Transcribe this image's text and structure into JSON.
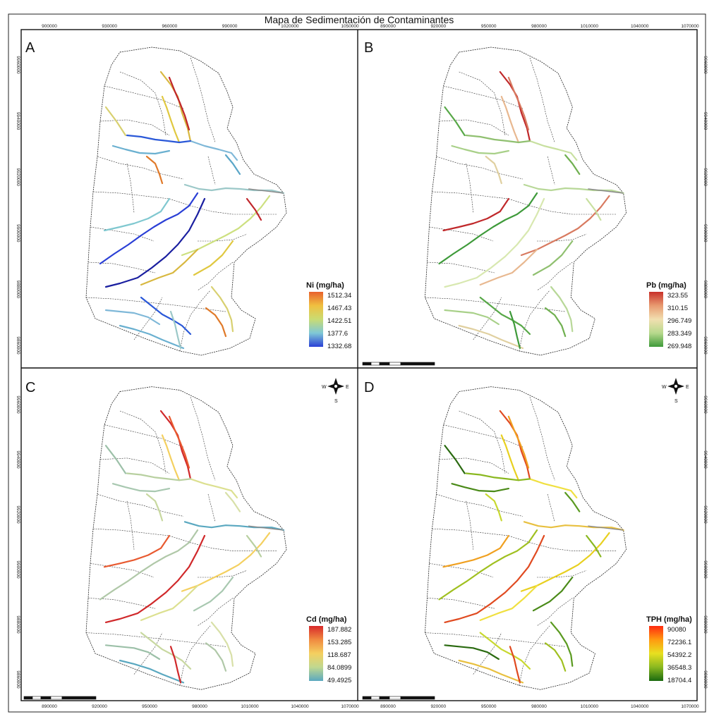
{
  "title": "Mapa de Sedimentación de Contaminantes",
  "panels": [
    {
      "letter": "A",
      "legend_title": "Ni (mg/ha)",
      "legend_values": [
        "1512.34",
        "1467.43",
        "1422.51",
        "1377.6",
        "1332.68"
      ],
      "ramp": [
        "#e8612c",
        "#f0c040",
        "#c9dc73",
        "#7fc8d6",
        "#2a3fd6"
      ],
      "x_ticks_top": [
        "900000",
        "930000",
        "960000",
        "990000",
        "1020000",
        "1050000"
      ],
      "y_ticks": [
        "9960000",
        "9940000",
        "9920000",
        "9900000",
        "9880000",
        "9860000"
      ],
      "show_north": false,
      "show_scale": false,
      "river_colors": [
        "#d8b840",
        "#c0262b",
        "#e0c840",
        "#7fb8d8",
        "#2a58d8",
        "#6ab0d0",
        "#d8d070",
        "#e07a2a",
        "#9cc8c8",
        "#5aa6c8",
        "#2a3fd6",
        "#1a1fa0",
        "#80c8d0",
        "#cde080"
      ]
    },
    {
      "letter": "B",
      "legend_title": "Pb (mg/ha)",
      "legend_values": [
        "323.55",
        "310.15",
        "296.749",
        "283.349",
        "269.948"
      ],
      "ramp": [
        "#c8302a",
        "#e89a70",
        "#f1dfb0",
        "#b7d98c",
        "#3e9a3a"
      ],
      "x_ticks_top": [
        "890000",
        "920000",
        "950000",
        "980000",
        "1010000",
        "1040000",
        "1070000"
      ],
      "y_ticks": [
        "9960000",
        "9940000",
        "9920000",
        "9900000",
        "9880000",
        "9860000"
      ],
      "show_north": false,
      "show_scale": true,
      "river_colors": [
        "#c0282a",
        "#d87a60",
        "#e8b890",
        "#c8e0a0",
        "#90c070",
        "#a8d088",
        "#58a848",
        "#e0d0a0",
        "#b8d898",
        "#70b050",
        "#3e9a3a",
        "#d8e8b0"
      ]
    },
    {
      "letter": "C",
      "legend_title": "Cd (mg/ha)",
      "legend_values": [
        "187.882",
        "153.285",
        "118.687",
        "84.0899",
        "49.4925"
      ],
      "ramp": [
        "#d8282a",
        "#f08a40",
        "#f4d060",
        "#c0d890",
        "#5aa8c0"
      ],
      "x_ticks_bottom": [
        "890000",
        "920000",
        "950000",
        "980000",
        "1010000",
        "1040000",
        "1070000"
      ],
      "y_ticks": [
        "9960000",
        "9940000",
        "9920000",
        "9900000",
        "9880000",
        "9860000"
      ],
      "show_north": true,
      "show_scale": true,
      "river_colors": [
        "#d0282a",
        "#e85a30",
        "#f4d060",
        "#dce090",
        "#b8d0a0",
        "#a8c8b0",
        "#9cc0a8",
        "#c8d8a0",
        "#5aa8c0",
        "#d8e0a8",
        "#b0c8a8"
      ]
    },
    {
      "letter": "D",
      "legend_title": "TPH (mg/ha)",
      "legend_values": [
        "90080",
        "72236.1",
        "54392.2",
        "36548.3",
        "18704.4"
      ],
      "ramp": [
        "#ff2a10",
        "#ff9a10",
        "#e8e020",
        "#8ab820",
        "#1a6a10"
      ],
      "x_ticks_bottom": [
        "890000",
        "920000",
        "950000",
        "980000",
        "1010000",
        "1040000",
        "1070000"
      ],
      "y_ticks": [
        "9960000",
        "9940000",
        "9920000",
        "9900000",
        "9880000",
        "9860000"
      ],
      "show_north": true,
      "show_scale": true,
      "river_colors": [
        "#e04a20",
        "#f0a020",
        "#e8d020",
        "#f0e040",
        "#8ab820",
        "#4a8a18",
        "#2a6a10",
        "#c8d830",
        "#e8c040",
        "#5a9a20",
        "#a0c020"
      ]
    }
  ],
  "north_labels": {
    "w": "W",
    "e": "E",
    "s": "S"
  }
}
